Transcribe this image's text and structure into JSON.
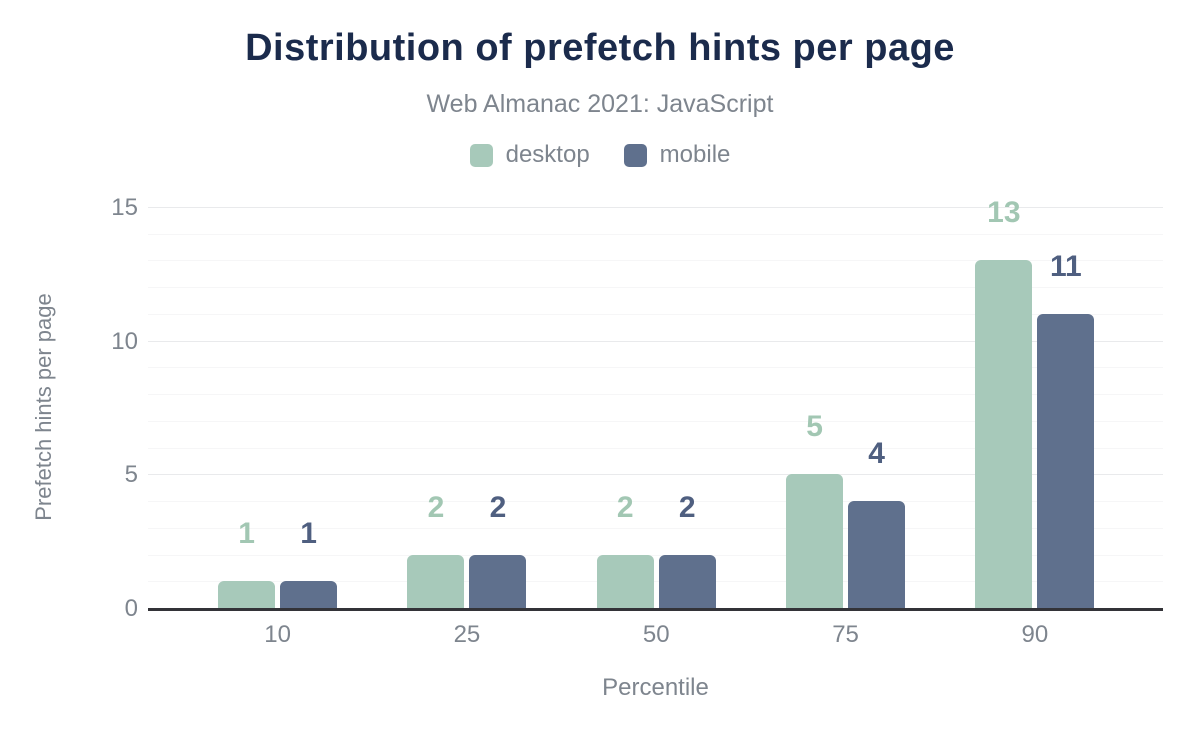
{
  "chart_data": {
    "type": "bar",
    "title": "Distribution of prefetch hints per page",
    "subtitle": "Web Almanac 2021: JavaScript",
    "xlabel": "Percentile",
    "ylabel": "Prefetch hints per page",
    "categories": [
      "10",
      "25",
      "50",
      "75",
      "90"
    ],
    "series": [
      {
        "name": "desktop",
        "values": [
          1,
          2,
          2,
          5,
          13
        ],
        "color": "#a7c9ba",
        "label_color": "#a2c7b3"
      },
      {
        "name": "mobile",
        "values": [
          1,
          2,
          2,
          4,
          11
        ],
        "color": "#5f708d",
        "label_color": "#4f5f80"
      }
    ],
    "ylim": [
      0,
      15
    ],
    "yticks": [
      0,
      5,
      10,
      15
    ],
    "bar_value_labels": true,
    "grid": "horizontal, every 1 unit, emphasized every 5 units",
    "legend_position": "top"
  },
  "colors": {
    "background": "#ffffff",
    "title": "#1b2b4c",
    "muted_text": "#7e858e",
    "axis_line": "#333338",
    "grid_minor": "#f6f6f7",
    "grid_major": "#e9eaec"
  }
}
